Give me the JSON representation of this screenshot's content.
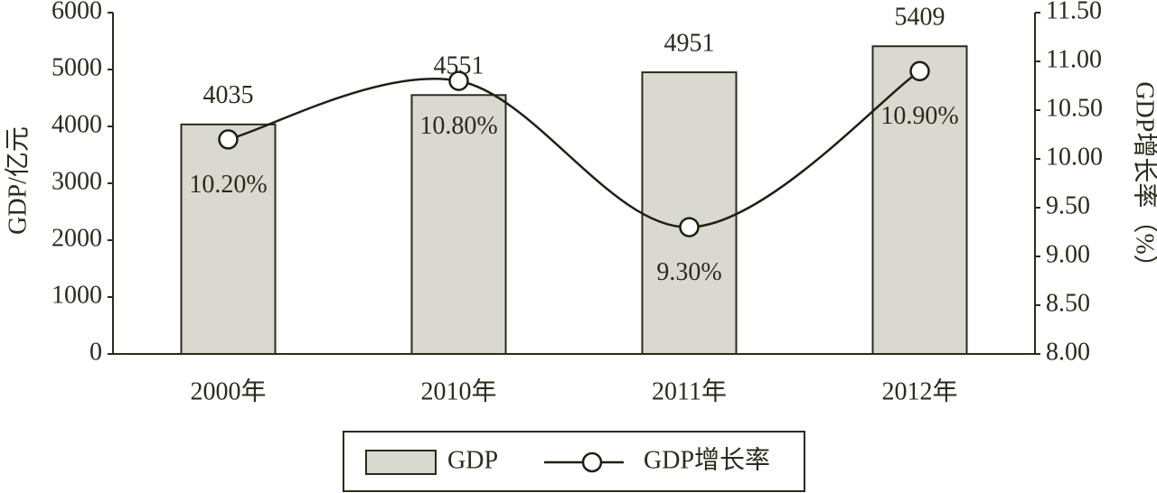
{
  "chart_data": {
    "type": "bar",
    "categories": [
      "2000年",
      "2010年",
      "2011年",
      "2012年"
    ],
    "series": [
      {
        "name": "GDP",
        "type": "bar",
        "color": "#d9d9d1",
        "values": [
          4035,
          4551,
          4951,
          5409
        ]
      },
      {
        "name": "GDP增长率",
        "type": "line",
        "axis": "y2",
        "color": "#1f1f12",
        "values": [
          10.2,
          10.8,
          9.3,
          10.9
        ],
        "value_labels": [
          "10.20%",
          "10.80%",
          "9.30%",
          "10.90%"
        ]
      }
    ],
    "ylabel": "GDP/亿元",
    "y2label": "GDP增长率（%）",
    "ylim": [
      0,
      6000
    ],
    "yticks": [
      0,
      1000,
      2000,
      3000,
      4000,
      5000,
      6000
    ],
    "y2lim": [
      8,
      11.5
    ],
    "y2ticks": [
      {
        "value": 8,
        "label": "8.00"
      },
      {
        "value": 8.5,
        "label": "8.50"
      },
      {
        "value": 9,
        "label": "9.00"
      },
      {
        "value": 9.5,
        "label": "9.50"
      },
      {
        "value": 10,
        "label": "10.00"
      },
      {
        "value": 10.5,
        "label": "10.50"
      },
      {
        "value": 11,
        "label": "11.00"
      },
      {
        "value": 11.5,
        "label": "11.50"
      }
    ],
    "legend": "bottom"
  }
}
